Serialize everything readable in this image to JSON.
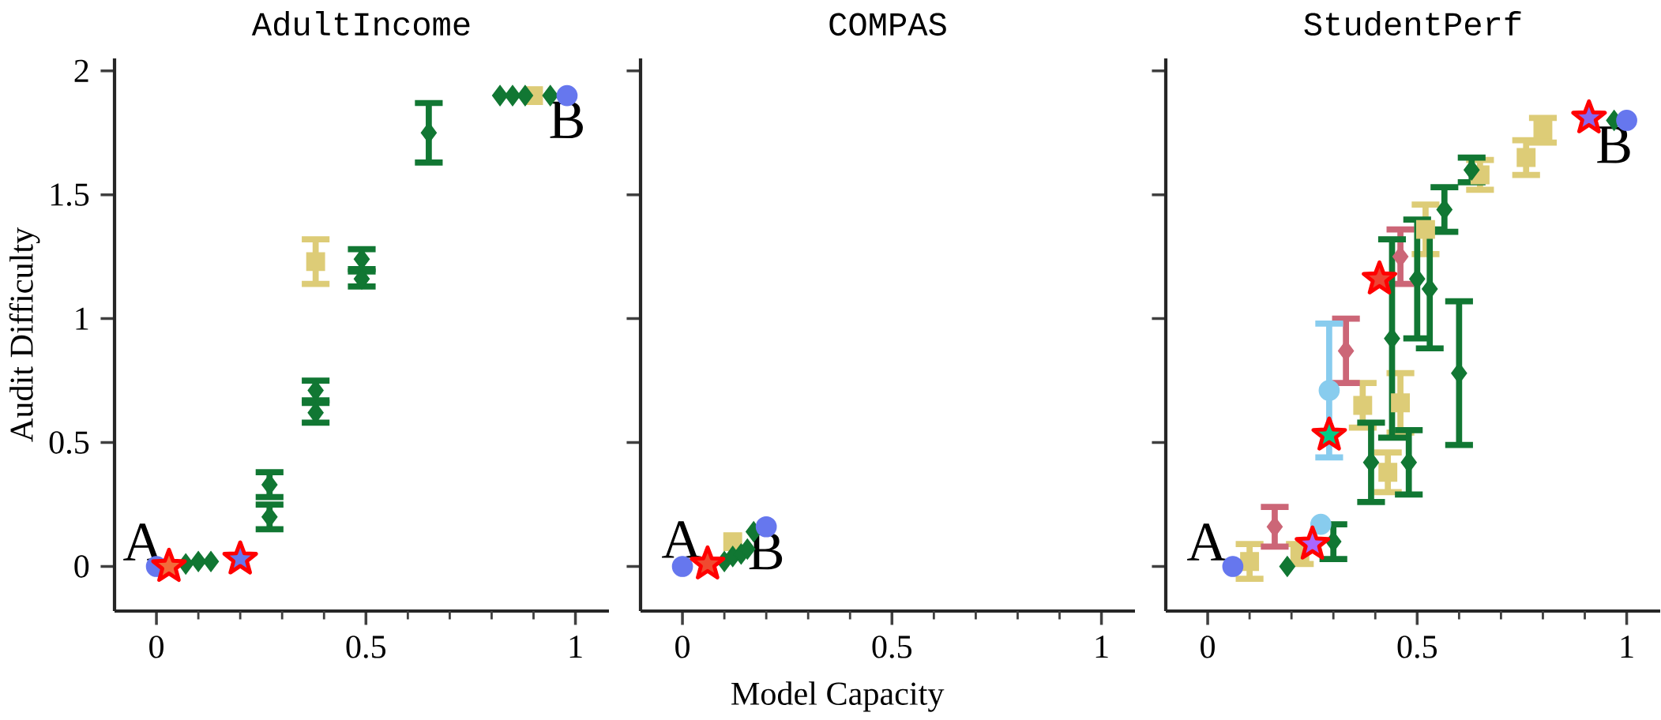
{
  "chart_data": [
    {
      "type": "scatter",
      "title": "AdultIncome",
      "ylabel": "Audit Difficulty",
      "xlim": [
        -0.1,
        1.08
      ],
      "ylim": [
        -0.18,
        2.05
      ],
      "xticks": [
        0,
        {
          "value": 0.1,
          "label": null
        },
        {
          "value": 0.2,
          "label": null
        },
        {
          "value": 0.3,
          "label": null
        },
        {
          "value": 0.4,
          "label": null
        },
        0.5,
        {
          "value": 0.6,
          "label": null
        },
        {
          "value": 0.7,
          "label": null
        },
        {
          "value": 0.8,
          "label": null
        },
        {
          "value": 0.9,
          "label": null
        },
        1
      ],
      "yticks": [
        0,
        0.5,
        1,
        1.5,
        2
      ],
      "series": [
        {
          "color": "#ddcc77",
          "marker": "square",
          "x": [
            0.38,
            0.9
          ],
          "values": [
            1.23,
            1.9
          ],
          "errors": [
            0.09,
            null
          ]
        },
        {
          "color": "#117733",
          "marker": "diamond",
          "x": [
            0.07,
            0.1,
            0.13,
            0.27,
            0.27,
            0.38,
            0.38,
            0.49,
            0.49,
            0.65,
            0.82,
            0.85,
            0.88,
            0.94
          ],
          "values": [
            0.01,
            0.02,
            0.02,
            0.2,
            0.33,
            0.62,
            0.71,
            1.16,
            1.24,
            1.75,
            1.9,
            1.9,
            1.9,
            1.9
          ],
          "errors": [
            null,
            null,
            null,
            0.05,
            0.05,
            0.04,
            0.04,
            0.03,
            0.04,
            0.12,
            null,
            null,
            null,
            null
          ]
        },
        {
          "color": "#6677ee",
          "marker": "circle",
          "x": [
            0,
            0.98
          ],
          "values": [
            0,
            1.9
          ]
        },
        {
          "marker": "star",
          "x": [
            0.03,
            0.2
          ],
          "values": [
            0,
            0.03
          ],
          "colors": [
            "#f26b3a",
            "#6677ee"
          ]
        }
      ],
      "annotations": [
        {
          "text": "A",
          "x": 0.03,
          "y": 0
        },
        {
          "text": "B",
          "x": 0.98,
          "y": 1.9
        }
      ]
    },
    {
      "type": "scatter",
      "title": "COMPAS",
      "xlabel": "Model Capacity",
      "tick_labels": "x",
      "xlim": [
        -0.1,
        1.08
      ],
      "ylim": [
        -0.18,
        2.05
      ],
      "xticks": [
        0,
        {
          "value": 0.1,
          "label": null
        },
        {
          "value": 0.2,
          "label": null
        },
        {
          "value": 0.3,
          "label": null
        },
        {
          "value": 0.4,
          "label": null
        },
        0.5,
        {
          "value": 0.6,
          "label": null
        },
        {
          "value": 0.7,
          "label": null
        },
        {
          "value": 0.8,
          "label": null
        },
        {
          "value": 0.9,
          "label": null
        },
        1
      ],
      "yticks": [
        0,
        0.5,
        1,
        1.5,
        2
      ],
      "series": [
        {
          "color": "#ddcc77",
          "marker": "square",
          "x": [
            0.12
          ],
          "values": [
            0.1
          ]
        },
        {
          "color": "#117733",
          "marker": "diamond",
          "x": [
            0.1,
            0.12,
            0.14,
            0.155,
            0.17
          ],
          "values": [
            0.02,
            0.04,
            0.05,
            0.07,
            0.14
          ]
        },
        {
          "color": "#6677ee",
          "marker": "circle",
          "x": [
            0,
            0.2
          ],
          "values": [
            0,
            0.16
          ]
        },
        {
          "marker": "star",
          "x": [
            0.06
          ],
          "values": [
            0.01
          ],
          "colors": [
            "#f04a30"
          ]
        }
      ],
      "annotations": [
        {
          "text": "A",
          "x": 0.06,
          "y": 0.01
        },
        {
          "text": "B",
          "x": 0.2,
          "y": 0.16
        }
      ]
    },
    {
      "type": "scatter",
      "title": "StudentPerf",
      "tick_labels": "x",
      "xlim": [
        -0.1,
        1.08
      ],
      "ylim": [
        -0.18,
        2.05
      ],
      "xticks": [
        0,
        {
          "value": 0.1,
          "label": null
        },
        {
          "value": 0.2,
          "label": null
        },
        {
          "value": 0.3,
          "label": null
        },
        {
          "value": 0.4,
          "label": null
        },
        0.5,
        {
          "value": 0.6,
          "label": null
        },
        {
          "value": 0.7,
          "label": null
        },
        {
          "value": 0.8,
          "label": null
        },
        {
          "value": 0.9,
          "label": null
        },
        1
      ],
      "yticks": [
        0,
        0.5,
        1,
        1.5,
        2
      ],
      "series": [
        {
          "color": "#ddcc77",
          "marker": "square",
          "x": [
            0.1,
            0.22,
            0.37,
            0.43,
            0.46,
            0.52,
            0.65,
            0.76,
            0.8
          ],
          "values": [
            0.02,
            0.05,
            0.65,
            0.38,
            0.66,
            1.36,
            1.58,
            1.65,
            1.76
          ],
          "errors": [
            0.07,
            0.04,
            0.09,
            0.08,
            0.12,
            0.1,
            0.06,
            0.07,
            0.05
          ]
        },
        {
          "color": "#cc6677",
          "marker": "diamond",
          "x": [
            0.16,
            0.33,
            0.46
          ],
          "values": [
            0.16,
            0.87,
            1.25
          ],
          "errors": [
            0.08,
            0.13,
            0.11
          ]
        },
        {
          "color": "#88ccee",
          "marker": "circle",
          "x": [
            0.27,
            0.29
          ],
          "values": [
            0.17,
            0.71
          ],
          "errors": [
            null,
            0.27
          ]
        },
        {
          "color": "#117733",
          "marker": "diamond",
          "x": [
            0.19,
            0.3,
            0.39,
            0.44,
            0.48,
            0.5,
            0.53,
            0.565,
            0.6,
            0.63,
            0.97
          ],
          "values": [
            0.0,
            0.1,
            0.42,
            0.92,
            0.42,
            1.16,
            1.12,
            1.44,
            0.78,
            1.6,
            1.8
          ],
          "errors": [
            null,
            0.07,
            0.16,
            0.4,
            0.13,
            0.24,
            0.24,
            0.09,
            0.29,
            0.05,
            null
          ]
        },
        {
          "color": "#6677ee",
          "marker": "circle",
          "x": [
            0.06,
            1.0
          ],
          "values": [
            0,
            1.8
          ]
        },
        {
          "marker": "star",
          "x": [
            0.25,
            0.29,
            0.41,
            0.91
          ],
          "values": [
            0.09,
            0.53,
            1.16,
            1.81
          ],
          "colors": [
            "#aa66ff",
            "#00cc88",
            "#ee4433",
            "#8866ee"
          ]
        }
      ],
      "annotations": [
        {
          "text": "A",
          "x": 0.06,
          "y": 0
        },
        {
          "text": "B",
          "x": 0.97,
          "y": 1.8
        }
      ]
    }
  ]
}
